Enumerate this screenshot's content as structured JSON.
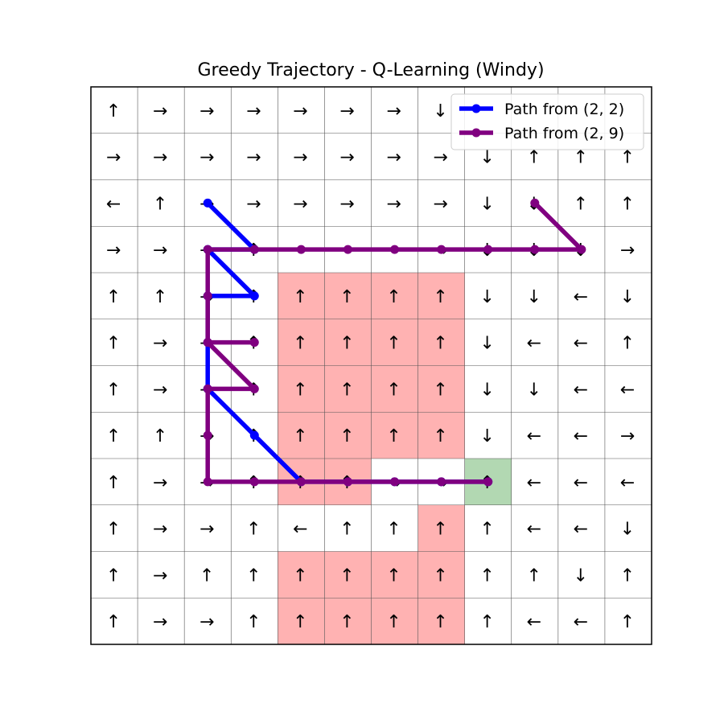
{
  "chart_data": {
    "type": "heatmap",
    "title": "Greedy Trajectory - Q-Learning (Windy)",
    "grid": {
      "rows": 12,
      "cols": 12
    },
    "policy": [
      [
        "↑",
        "→",
        "→",
        "→",
        "→",
        "→",
        "→",
        "↓",
        "",
        "",
        "",
        ""
      ],
      [
        "→",
        "→",
        "→",
        "→",
        "→",
        "→",
        "→",
        "→",
        "↓",
        "↑",
        "↑",
        "↑"
      ],
      [
        "←",
        "↑",
        "→",
        "→",
        "→",
        "→",
        "→",
        "→",
        "↓",
        "↓",
        "↑",
        "↑"
      ],
      [
        "→",
        "→",
        "→",
        "↑",
        "",
        "",
        "",
        "→",
        "↓",
        "↓",
        "↓",
        "→"
      ],
      [
        "↑",
        "↑",
        "→",
        "↑",
        "↑",
        "↑",
        "↑",
        "↑",
        "↓",
        "↓",
        "←",
        "↓"
      ],
      [
        "↑",
        "→",
        "→",
        "↑",
        "↑",
        "↑",
        "↑",
        "↑",
        "↓",
        "←",
        "←",
        "↑"
      ],
      [
        "↑",
        "→",
        "→",
        "↑",
        "↑",
        "↑",
        "↑",
        "↑",
        "↓",
        "↓",
        "←",
        "←"
      ],
      [
        "↑",
        "↑",
        "→",
        "↑",
        "↑",
        "↑",
        "↑",
        "↑",
        "↓",
        "←",
        "←",
        "→"
      ],
      [
        "↑",
        "→",
        "→",
        "↑",
        "↑",
        "↑",
        "→",
        "→",
        "↑",
        "←",
        "←",
        "←"
      ],
      [
        "↑",
        "→",
        "→",
        "↑",
        "←",
        "↑",
        "↑",
        "↑",
        "↑",
        "←",
        "←",
        "↓"
      ],
      [
        "↑",
        "→",
        "↑",
        "↑",
        "↑",
        "↑",
        "↑",
        "↑",
        "↑",
        "↑",
        "↓",
        "↑"
      ],
      [
        "↑",
        "→",
        "→",
        "↑",
        "↑",
        "↑",
        "↑",
        "↑",
        "↑",
        "←",
        "←",
        "↑"
      ]
    ],
    "hazard_cells": [
      [
        4,
        4
      ],
      [
        4,
        5
      ],
      [
        4,
        6
      ],
      [
        4,
        7
      ],
      [
        5,
        4
      ],
      [
        5,
        5
      ],
      [
        5,
        6
      ],
      [
        5,
        7
      ],
      [
        6,
        4
      ],
      [
        6,
        5
      ],
      [
        6,
        6
      ],
      [
        6,
        7
      ],
      [
        7,
        4
      ],
      [
        7,
        5
      ],
      [
        7,
        6
      ],
      [
        7,
        7
      ],
      [
        8,
        4
      ],
      [
        8,
        5
      ],
      [
        9,
        7
      ],
      [
        10,
        4
      ],
      [
        10,
        5
      ],
      [
        10,
        6
      ],
      [
        10,
        7
      ],
      [
        11,
        4
      ],
      [
        11,
        5
      ],
      [
        11,
        6
      ],
      [
        11,
        7
      ]
    ],
    "goal_cell": [
      8,
      8
    ],
    "colors": {
      "hazard": "#ffb2b2",
      "goal": "#b2d8b2",
      "grid_line": "#555555"
    },
    "series": [
      {
        "name": "Path from (2, 2)",
        "color": "#0000ff",
        "points": [
          [
            2,
            2
          ],
          [
            3,
            3
          ],
          [
            2,
            3
          ],
          [
            3,
            4
          ],
          [
            2,
            4
          ],
          [
            2,
            5
          ],
          [
            2,
            6
          ],
          [
            3,
            7
          ],
          [
            4,
            8
          ],
          [
            5,
            8
          ],
          [
            6,
            8
          ],
          [
            7,
            8
          ],
          [
            8,
            8
          ]
        ]
      },
      {
        "name": "Path from (2, 9)",
        "color": "#800080",
        "points": [
          [
            9,
            2
          ],
          [
            10,
            3
          ],
          [
            9,
            3
          ],
          [
            8,
            3
          ],
          [
            7,
            3
          ],
          [
            6,
            3
          ],
          [
            5,
            3
          ],
          [
            4,
            3
          ],
          [
            3,
            3
          ],
          [
            2,
            3
          ],
          [
            2,
            4
          ],
          [
            2,
            5
          ],
          [
            3,
            5
          ],
          [
            2,
            5
          ],
          [
            3,
            6
          ],
          [
            2,
            6
          ],
          [
            2,
            7
          ],
          [
            2,
            8
          ],
          [
            3,
            8
          ],
          [
            4,
            8
          ],
          [
            5,
            8
          ],
          [
            6,
            8
          ],
          [
            7,
            8
          ],
          [
            8,
            8
          ]
        ]
      }
    ],
    "legend": {
      "placement": "top-right"
    }
  }
}
